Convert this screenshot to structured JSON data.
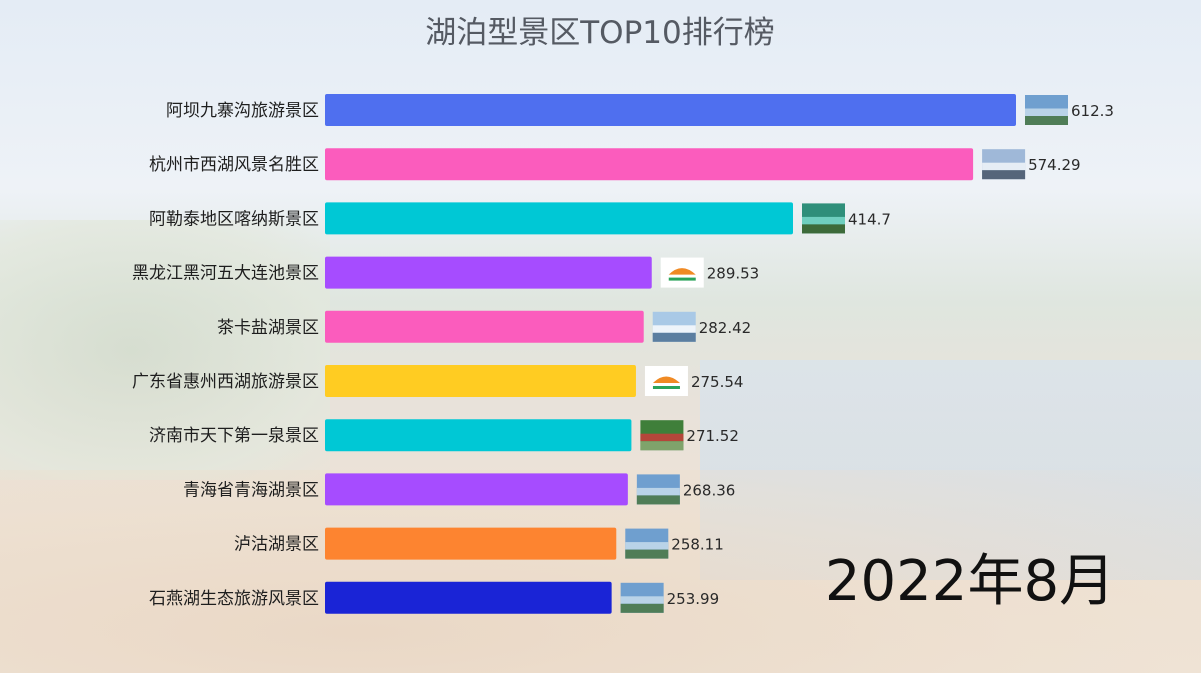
{
  "chart_data": {
    "type": "bar",
    "orientation": "horizontal",
    "title": "湖泊型景区TOP10排行榜",
    "period_label": "2022年8月",
    "categories": [
      "阿坝九寨沟旅游景区",
      "杭州市西湖风景名胜区",
      "阿勒泰地区喀纳斯景区",
      "黑龙江黑河五大连池景区",
      "茶卡盐湖景区",
      "广东省惠州西湖旅游景区",
      "济南市天下第一泉景区",
      "青海省青海湖景区",
      "泸沽湖景区",
      "石燕湖生态旅游风景区"
    ],
    "values": [
      612.3,
      574.29,
      414.7,
      289.53,
      282.42,
      275.54,
      271.52,
      268.36,
      258.11,
      253.99
    ],
    "value_labels": [
      "612.3",
      "574.29",
      "414.7",
      "289.53",
      "282.42",
      "275.54",
      "271.52",
      "268.36",
      "258.11",
      "253.99"
    ],
    "colors": [
      "#4f6fef",
      "#fb5cbd",
      "#00c8d5",
      "#a64cff",
      "#fb5cbd",
      "#ffcc22",
      "#00c8d5",
      "#a64cff",
      "#fd8430",
      "#1a24d6"
    ],
    "thumbnails": [
      "lake-photo",
      "city-lake-photo",
      "green-lake-photo",
      "logo",
      "salt-lake-photo",
      "logo",
      "garden-photo",
      "lake-photo",
      "lake-photo",
      "lake-photo"
    ],
    "xlim": [
      0,
      612.3
    ],
    "grid": false,
    "legend": "none"
  }
}
